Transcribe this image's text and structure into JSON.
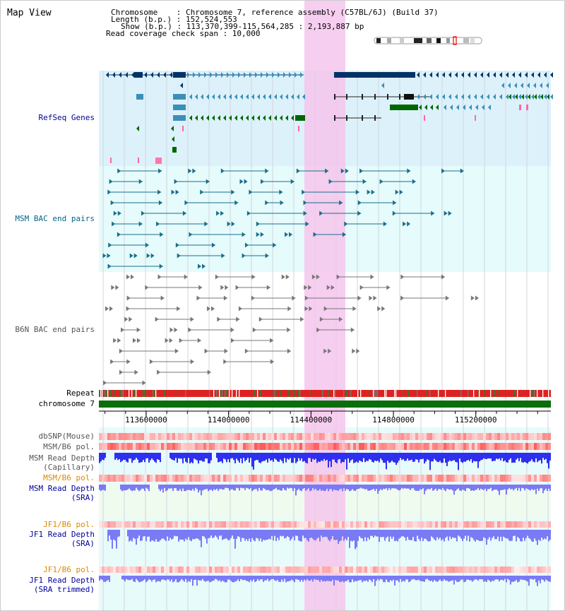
{
  "view": {
    "title": "Map View"
  },
  "header": {
    "chromosome": "Chromosome    : Chromosome 7, reference assembly (C57BL/6J) (Build 37)",
    "length": "Length (b.p.) : 152,524,553",
    "show": "Show (b.p.) : 113,370,399-115,564,285 : 2,193,887 bp",
    "coverage": "Read coverage check span : 10,000"
  },
  "tracks": {
    "refseq": "RefSeq Genes",
    "msm_bac": "MSM BAC end pairs",
    "b6n_bac": "B6N BAC end pairs",
    "repeat": "Repeat",
    "chromosome": "chromosome 7",
    "dbsnp": "dbSNP(Mouse)",
    "msm_pol_1": "MSM/B6 pol.",
    "msm_depth_cap_1": "MSM Read Depth",
    "msm_depth_cap_2": "(Capillary)",
    "msm_pol_2": "MSM/B6 pol.",
    "msm_depth_sra_1": "MSM Read Depth",
    "msm_depth_sra_2": "(SRA)",
    "jf1_pol_1": "JF1/B6 pol.",
    "jf1_depth_sra_1": "JF1 Read Depth",
    "jf1_depth_sra_2": "(SRA)",
    "jf1_pol_2": "JF1/B6 pol.",
    "jf1_depth_trim_1": "JF1 Read Depth",
    "jf1_depth_trim_2": "(SRA trimmed)"
  },
  "axis": {
    "ticks": [
      {
        "label": "113600000",
        "value": 113600000
      },
      {
        "label": "114000000",
        "value": 114000000
      },
      {
        "label": "114400000",
        "value": 114400000
      },
      {
        "label": "114800000",
        "value": 114800000
      },
      {
        "label": "115200000",
        "value": 115200000
      }
    ]
  },
  "colors": {
    "label_blue": "#000099",
    "label_teal": "#006688",
    "label_gray": "#555555",
    "label_orange": "#dd8800",
    "highlight": "#f5c6ec",
    "gene_navy": "#003366",
    "gene_blue": "#3a8fb8",
    "gene_green": "#006600",
    "bac_teal": "#1a6e8c",
    "bac_gray": "#777777",
    "depth_blue": "#2f2ff0",
    "depth_light": "#7a7af5"
  }
}
